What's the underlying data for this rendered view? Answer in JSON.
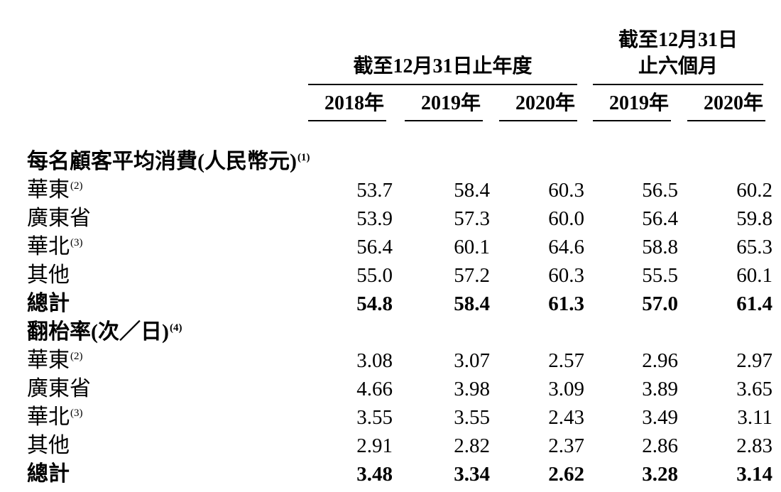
{
  "table": {
    "col_groups": [
      {
        "title_lines": [
          "截至12月31日止年度"
        ],
        "span": 3
      },
      {
        "title_lines": [
          "截至12月31日",
          "止六個月"
        ],
        "span": 2
      }
    ],
    "year_headers": [
      "2018年",
      "2019年",
      "2020年",
      "2019年",
      "2020年"
    ],
    "sections": [
      {
        "header": "每名顧客平均消費(人民幣元)",
        "header_note": "(1)",
        "rows": [
          {
            "label": "華東",
            "note": "(2)",
            "values": [
              "53.7",
              "58.4",
              "60.3",
              "56.5",
              "60.2"
            ],
            "bold": false
          },
          {
            "label": "廣東省",
            "note": "",
            "values": [
              "53.9",
              "57.3",
              "60.0",
              "56.4",
              "59.8"
            ],
            "bold": false
          },
          {
            "label": "華北",
            "note": "(3)",
            "values": [
              "56.4",
              "60.1",
              "64.6",
              "58.8",
              "65.3"
            ],
            "bold": false
          },
          {
            "label": "其他",
            "note": "",
            "values": [
              "55.0",
              "57.2",
              "60.3",
              "55.5",
              "60.1"
            ],
            "bold": false
          },
          {
            "label": "總計",
            "note": "",
            "values": [
              "54.8",
              "58.4",
              "61.3",
              "57.0",
              "61.4"
            ],
            "bold": true
          }
        ]
      },
      {
        "header": "翻枱率(次／日)",
        "header_note": "(4)",
        "rows": [
          {
            "label": "華東",
            "note": "(2)",
            "values": [
              "3.08",
              "3.07",
              "2.57",
              "2.96",
              "2.97"
            ],
            "bold": false
          },
          {
            "label": "廣東省",
            "note": "",
            "values": [
              "4.66",
              "3.98",
              "3.09",
              "3.89",
              "3.65"
            ],
            "bold": false
          },
          {
            "label": "華北",
            "note": "(3)",
            "values": [
              "3.55",
              "3.55",
              "2.43",
              "3.49",
              "3.11"
            ],
            "bold": false
          },
          {
            "label": "其他",
            "note": "",
            "values": [
              "2.91",
              "2.82",
              "2.37",
              "2.86",
              "2.83"
            ],
            "bold": false
          },
          {
            "label": "總計",
            "note": "",
            "values": [
              "3.48",
              "3.34",
              "2.62",
              "3.28",
              "3.14"
            ],
            "bold": true
          }
        ]
      }
    ]
  }
}
